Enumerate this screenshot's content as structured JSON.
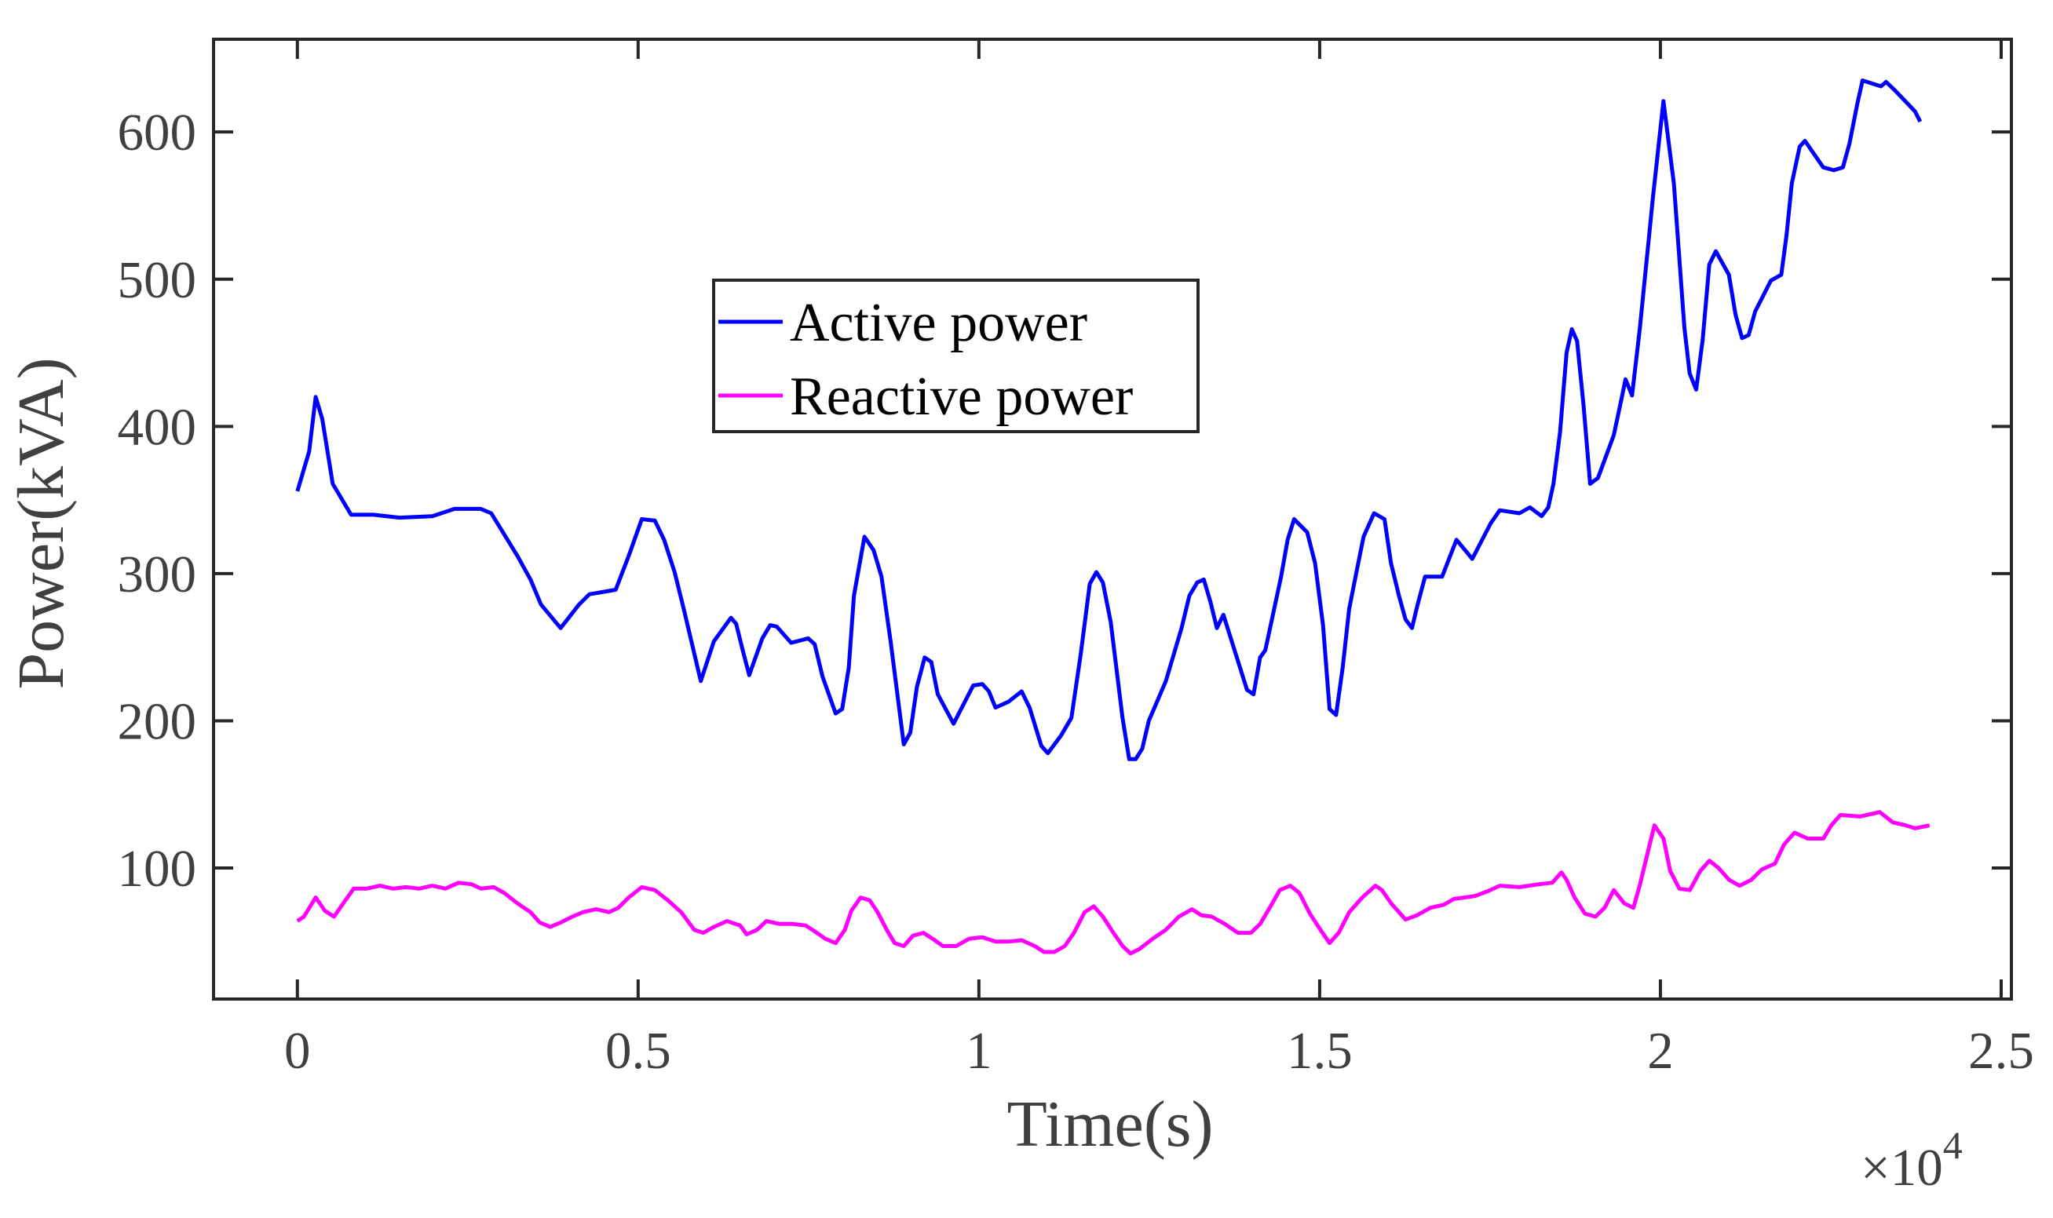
{
  "chart_data": {
    "type": "line",
    "xlabel": "Time(s)",
    "ylabel": "Power(kVA)",
    "x_multiplier": {
      "base": "×10",
      "exponent": "4"
    },
    "xlim": [
      -1230,
      25150
    ],
    "ylim": [
      11,
      663
    ],
    "xticks": [
      0,
      {
        "value": 5000,
        "label": "0.5"
      },
      {
        "value": 10000,
        "label": "1"
      },
      {
        "value": 15000,
        "label": "1.5"
      },
      {
        "value": 20000,
        "label": "2"
      },
      {
        "value": 25000,
        "label": "2.5"
      }
    ],
    "yticks": [
      100,
      200,
      300,
      400,
      500,
      600
    ],
    "grid": false,
    "legend": "upper center",
    "series": [
      {
        "name": "Active power",
        "color": "#0000ff",
        "x": [
          0,
          173,
          269,
          365,
          519,
          788,
          1115,
          1499,
          1980,
          2306,
          2691,
          2844,
          3229,
          3421,
          3575,
          3863,
          4132,
          4286,
          4670,
          4862,
          5054,
          5246,
          5381,
          5535,
          5669,
          5919,
          6111,
          6361,
          6438,
          6534,
          6630,
          6822,
          6937,
          7034,
          7245,
          7495,
          7591,
          7706,
          7898,
          7994,
          8090,
          8167,
          8321,
          8455,
          8571,
          8705,
          8898,
          8994,
          9090,
          9205,
          9301,
          9397,
          9628,
          9916,
          10051,
          10147,
          10243,
          10435,
          10627,
          10743,
          10916,
          11012,
          11205,
          11358,
          11493,
          11627,
          11724,
          11820,
          11935,
          12108,
          12205,
          12301,
          12397,
          12493,
          12743,
          12974,
          13089,
          13204,
          13300,
          13396,
          13492,
          13588,
          13819,
          13934,
          14030,
          14126,
          14203,
          14434,
          14530,
          14626,
          14818,
          14933,
          15049,
          15145,
          15241,
          15337,
          15433,
          15548,
          15644,
          15798,
          15951,
          16047,
          16163,
          16259,
          16355,
          16432,
          16547,
          16682,
          16797,
          17008,
          17239,
          17508,
          17643,
          17931,
          18085,
          18258,
          18354,
          18431,
          18527,
          18623,
          18700,
          18777,
          18873,
          18969,
          19084,
          19315,
          19430,
          19488,
          19584,
          19699,
          19891,
          20045,
          20198,
          20352,
          20429,
          20525,
          20621,
          20717,
          20813,
          21005,
          21102,
          21198,
          21294,
          21390,
          21620,
          21774,
          21851,
          21928,
          22043,
          22120,
          22389,
          22545,
          22678,
          22774,
          22889,
          22966,
          23235,
          23312,
          23447,
          23735,
          23812
        ],
        "values": [
          356,
          383,
          420,
          405,
          361,
          340,
          340,
          338,
          339,
          344,
          344,
          341,
          312,
          296,
          279,
          263,
          279,
          286,
          289,
          312,
          337,
          336,
          323,
          301,
          276,
          227,
          254,
          270,
          266,
          248,
          231,
          256,
          265,
          264,
          253,
          256,
          252,
          230,
          205,
          208,
          236,
          285,
          325,
          316,
          298,
          254,
          184,
          192,
          223,
          243,
          240,
          218,
          198,
          224,
          225,
          220,
          209,
          213,
          220,
          209,
          183,
          178,
          190,
          202,
          245,
          293,
          301,
          294,
          267,
          202,
          174,
          174,
          181,
          200,
          227,
          263,
          285,
          294,
          296,
          281,
          263,
          272,
          238,
          221,
          218,
          243,
          248,
          298,
          323,
          337,
          328,
          307,
          265,
          208,
          204,
          236,
          276,
          303,
          325,
          341,
          337,
          307,
          285,
          269,
          263,
          278,
          298,
          298,
          298,
          323,
          310,
          334,
          343,
          341,
          345,
          339,
          345,
          361,
          396,
          450,
          466,
          458,
          414,
          361,
          365,
          394,
          419,
          432,
          421,
          467,
          556,
          621,
          565,
          467,
          436,
          425,
          459,
          510,
          519,
          503,
          476,
          460,
          462,
          478,
          499,
          503,
          530,
          565,
          590,
          594,
          576,
          574,
          576,
          592,
          619,
          635,
          631,
          634,
          628,
          614,
          607
        ]
      },
      {
        "name": "Reactive power",
        "color": "#ff00ff",
        "x": [
          0,
          96,
          269,
          404,
          538,
          673,
          826,
          1019,
          1211,
          1403,
          1595,
          1787,
          1980,
          2172,
          2364,
          2556,
          2691,
          2883,
          3037,
          3229,
          3421,
          3556,
          3710,
          3863,
          4036,
          4190,
          4382,
          4574,
          4709,
          4862,
          5054,
          5246,
          5439,
          5631,
          5823,
          5958,
          6111,
          6304,
          6496,
          6592,
          6746,
          6881,
          7073,
          7265,
          7457,
          7591,
          7745,
          7898,
          8033,
          8129,
          8264,
          8398,
          8513,
          8648,
          8763,
          8898,
          9032,
          9186,
          9320,
          9474,
          9666,
          9859,
          10051,
          10243,
          10435,
          10627,
          10820,
          10954,
          11108,
          11261,
          11396,
          11551,
          11686,
          11820,
          11974,
          12109,
          12224,
          12358,
          12551,
          12743,
          12935,
          13127,
          13262,
          13416,
          13608,
          13800,
          13992,
          14127,
          14280,
          14415,
          14569,
          14703,
          14857,
          15011,
          15145,
          15280,
          15434,
          15626,
          15818,
          15914,
          16049,
          16260,
          16433,
          16625,
          16818,
          16971,
          17125,
          17279,
          17452,
          17644,
          17932,
          18221,
          18413,
          18547,
          18624,
          18740,
          18893,
          19047,
          19182,
          19316,
          19470,
          19604,
          19701,
          19816,
          19912,
          20046,
          20143,
          20277,
          20431,
          20585,
          20719,
          20854,
          21007,
          21161,
          21334,
          21488,
          21680,
          21815,
          21968,
          22161,
          22391,
          22507,
          22641,
          22929,
          23218,
          23410,
          23602,
          23737,
          23948
        ],
        "values": [
          64,
          67,
          80,
          71,
          67,
          76,
          86,
          86,
          88,
          86,
          87,
          86,
          88,
          86,
          90,
          89,
          86,
          87,
          83,
          76,
          70,
          63,
          60,
          63,
          67,
          70,
          72,
          70,
          73,
          80,
          87,
          85,
          78,
          70,
          58,
          56,
          60,
          64,
          61,
          55,
          58,
          64,
          62,
          62,
          61,
          57,
          52,
          49,
          58,
          71,
          80,
          78,
          70,
          58,
          49,
          47,
          54,
          56,
          52,
          47,
          47,
          52,
          53,
          50,
          50,
          51,
          47,
          43,
          43,
          47,
          56,
          70,
          74,
          67,
          56,
          47,
          42,
          45,
          52,
          58,
          67,
          72,
          68,
          67,
          62,
          56,
          56,
          62,
          74,
          85,
          88,
          83,
          69,
          58,
          49,
          56,
          70,
          80,
          88,
          85,
          76,
          65,
          68,
          73,
          75,
          79,
          80,
          81,
          84,
          88,
          87,
          89,
          90,
          97,
          92,
          80,
          69,
          67,
          73,
          85,
          76,
          73,
          89,
          111,
          129,
          120,
          98,
          86,
          85,
          98,
          105,
          100,
          92,
          88,
          92,
          99,
          103,
          116,
          124,
          120,
          120,
          129,
          136,
          135,
          138,
          131,
          129,
          127,
          129
        ]
      }
    ]
  }
}
